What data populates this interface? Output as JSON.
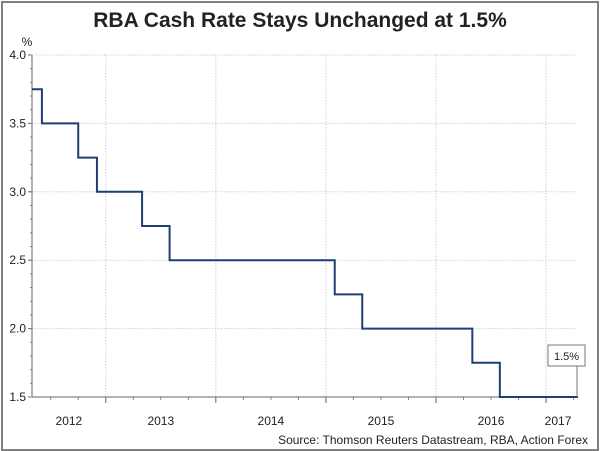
{
  "chart_data": {
    "type": "line",
    "title": "RBA Cash Rate Stays Unchanged at 1.5%",
    "ylabel": "%",
    "xlabel": "",
    "source": "Source: Thomson Reuters Datastream, RBA, Action Forex",
    "ylim": [
      1.5,
      4.0
    ],
    "xlim": [
      2012.33,
      2017.29
    ],
    "yticks": [
      "1.5",
      "2.0",
      "2.5",
      "3.0",
      "3.5",
      "4.0"
    ],
    "xticks": [
      "2012",
      "2013",
      "2014",
      "2015",
      "2016",
      "2017"
    ],
    "grid": true,
    "series": [
      {
        "name": "RBA Cash Rate",
        "color": "#1f3f73",
        "step": true,
        "x": [
          2012.33,
          2012.42,
          2012.75,
          2012.92,
          2013.33,
          2013.58,
          2015.08,
          2015.33,
          2016.33,
          2016.58,
          2017.29
        ],
        "y": [
          3.75,
          3.5,
          3.25,
          3.0,
          2.75,
          2.5,
          2.25,
          2.0,
          1.75,
          1.5,
          1.5
        ]
      }
    ],
    "annotation": "1.5%"
  }
}
